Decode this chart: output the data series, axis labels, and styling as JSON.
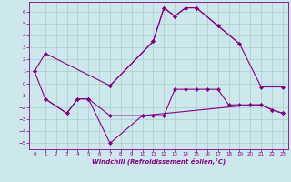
{
  "title": "",
  "xlabel": "Windchill (Refroidissement éolien,°C)",
  "ylabel": "",
  "bg_color": "#cce8ec",
  "line_color": "#880088",
  "grid_color": "#aacccc",
  "x_ticks": [
    0,
    1,
    2,
    3,
    4,
    5,
    6,
    7,
    8,
    9,
    10,
    11,
    12,
    13,
    14,
    15,
    16,
    17,
    18,
    19,
    20,
    21,
    22,
    23
  ],
  "ylim": [
    -5.5,
    6.8
  ],
  "yticks": [
    -5,
    -4,
    -3,
    -2,
    -1,
    0,
    1,
    2,
    3,
    4,
    5,
    6
  ],
  "s0_x": [
    0,
    1,
    7,
    11,
    12,
    13,
    14,
    15,
    17,
    19
  ],
  "s0_y": [
    1.0,
    2.5,
    -0.2,
    3.5,
    6.3,
    5.6,
    6.3,
    6.3,
    4.8,
    3.3
  ],
  "s1_x": [
    7,
    11,
    12,
    13,
    14,
    15,
    17,
    19,
    21,
    23
  ],
  "s1_y": [
    -0.2,
    3.5,
    6.3,
    5.6,
    6.3,
    6.3,
    4.8,
    3.3,
    -0.3,
    -0.3
  ],
  "s2_x": [
    0,
    1,
    3,
    4,
    5,
    7,
    10,
    20,
    21,
    22,
    23
  ],
  "s2_y": [
    1.0,
    -1.3,
    -2.5,
    -1.3,
    -1.3,
    -5.0,
    -2.7,
    -1.8,
    -1.8,
    -2.2,
    -2.5
  ],
  "s3_x": [
    1,
    3,
    4,
    5,
    7,
    10,
    11,
    12,
    13,
    14,
    15,
    16,
    17,
    18,
    19,
    20,
    21,
    22,
    23
  ],
  "s3_y": [
    -1.3,
    -2.5,
    -1.3,
    -1.3,
    -2.7,
    -2.7,
    -2.7,
    -2.7,
    -0.5,
    -0.5,
    -0.5,
    -0.5,
    -0.5,
    -1.8,
    -1.8,
    -1.8,
    -1.8,
    -2.2,
    -2.5
  ]
}
